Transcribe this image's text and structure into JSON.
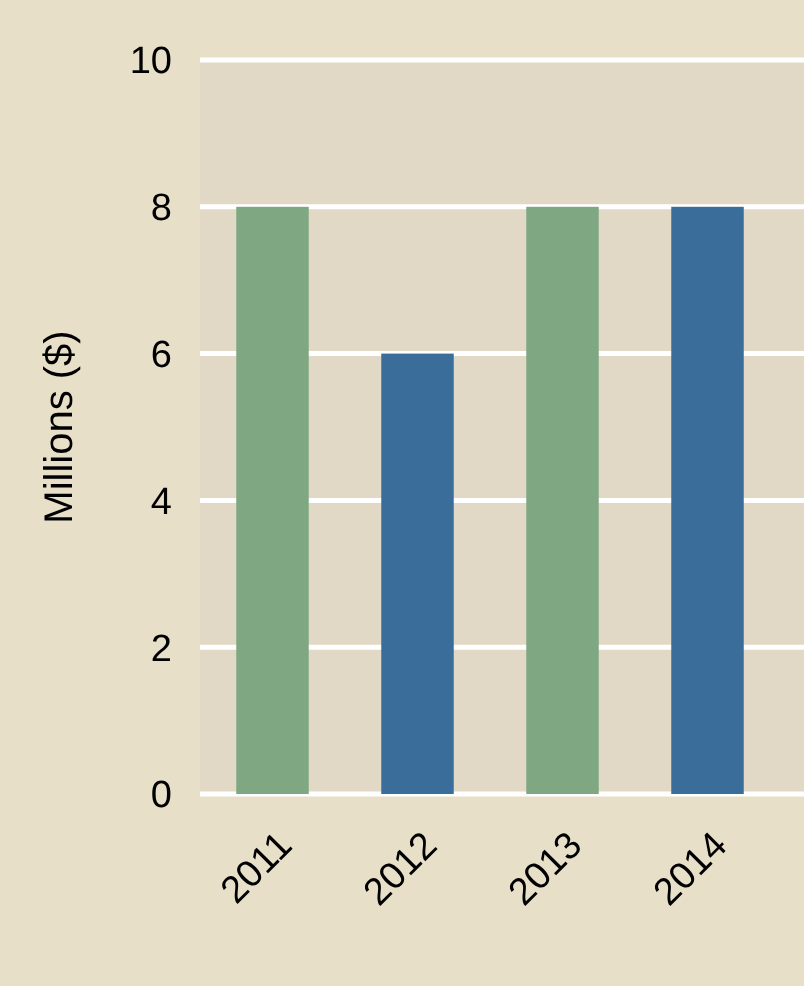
{
  "chart_data": {
    "type": "bar",
    "ylabel": "Millions ($)",
    "categories": [
      "2011",
      "2012",
      "2013",
      "2014"
    ],
    "values": [
      8,
      6,
      8,
      8
    ],
    "colors": [
      "#7fa882",
      "#3b6d9a",
      "#7fa882",
      "#3b6d9a"
    ],
    "ylim": [
      0,
      10
    ],
    "yticks": [
      0,
      2,
      4,
      6,
      8,
      10
    ],
    "grid": "y"
  }
}
